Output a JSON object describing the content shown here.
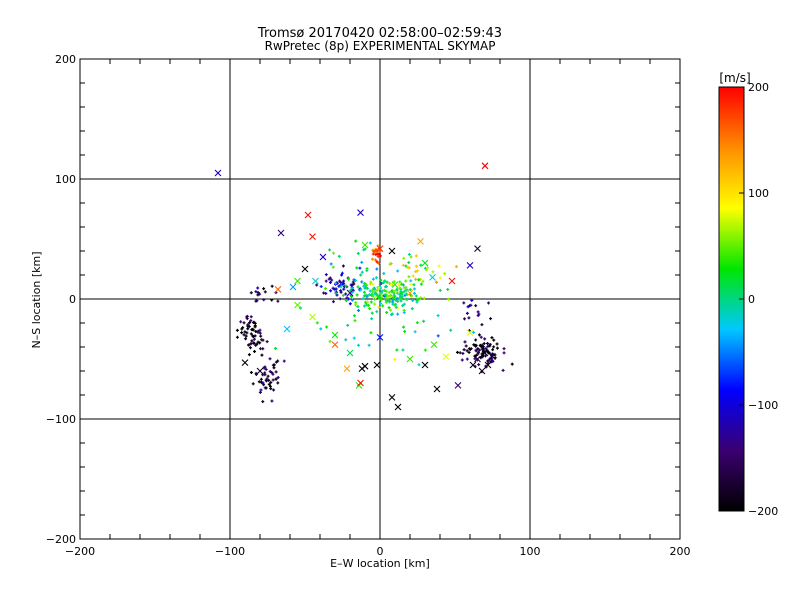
{
  "chart_data": {
    "type": "scatter",
    "title": "Tromsø 20170420 02:58:00–02:59:43",
    "subtitle": "RwPretec (8p) EXPERIMENTAL SKYMAP",
    "xlabel": "E–W location [km]",
    "ylabel": "N–S location [km]",
    "xlim": [
      -200,
      200
    ],
    "ylim": [
      -200,
      200
    ],
    "x_ticks": [
      -200,
      -100,
      0,
      100,
      200
    ],
    "y_ticks": [
      -200,
      -100,
      0,
      100,
      200
    ],
    "x_tick_labels": [
      "−200",
      "−100",
      "0",
      "100",
      "200"
    ],
    "y_tick_labels": [
      "−200",
      "−100",
      "0",
      "100",
      "200"
    ],
    "grid": true,
    "colorbar": {
      "label": "[m/s]",
      "range": [
        -200,
        200
      ],
      "ticks": [
        200,
        100,
        0,
        -100,
        -200
      ],
      "tick_labels": [
        "200",
        "100",
        "0",
        "−100",
        "−200"
      ],
      "colors": [
        "#000000",
        "#3a0070",
        "#0000ff",
        "#00c8ff",
        "#00e600",
        "#ffff00",
        "#ff8c00",
        "#ff0000"
      ]
    },
    "series": [
      {
        "marker": "x",
        "points": [
          [
            -108,
            105,
            -110
          ],
          [
            70,
            111,
            200
          ],
          [
            -48,
            70,
            195
          ],
          [
            -13,
            72,
            -110
          ],
          [
            -66,
            55,
            -140
          ],
          [
            -45,
            52,
            195
          ],
          [
            -38,
            35,
            -110
          ],
          [
            27,
            48,
            130
          ],
          [
            -10,
            45,
            40
          ],
          [
            0,
            42,
            180
          ],
          [
            8,
            40,
            -200
          ],
          [
            30,
            30,
            20
          ],
          [
            -50,
            25,
            -200
          ],
          [
            -43,
            15,
            -20
          ],
          [
            -55,
            15,
            40
          ],
          [
            -68,
            8,
            160
          ],
          [
            -58,
            10,
            -40
          ],
          [
            -20,
            5,
            -130
          ],
          [
            10,
            12,
            40
          ],
          [
            20,
            5,
            130
          ],
          [
            35,
            18,
            -20
          ],
          [
            60,
            28,
            -110
          ],
          [
            65,
            42,
            -180
          ],
          [
            48,
            15,
            195
          ],
          [
            -30,
            -30,
            30
          ],
          [
            -62,
            -25,
            -30
          ],
          [
            -55,
            -5,
            50
          ],
          [
            -45,
            -15,
            70
          ],
          [
            0,
            -32,
            -80
          ],
          [
            -30,
            -38,
            160
          ],
          [
            -20,
            -45,
            10
          ],
          [
            -12,
            -58,
            -200
          ],
          [
            -10,
            -56,
            -200
          ],
          [
            -2,
            -55,
            -200
          ],
          [
            30,
            -55,
            -200
          ],
          [
            38,
            -75,
            -200
          ],
          [
            8,
            -82,
            -200
          ],
          [
            12,
            -90,
            -200
          ],
          [
            -14,
            -72,
            40
          ],
          [
            -13,
            -70,
            195
          ],
          [
            -90,
            -53,
            -200
          ],
          [
            -22,
            -58,
            130
          ],
          [
            -80,
            -60,
            -190
          ],
          [
            20,
            -50,
            40
          ],
          [
            36,
            -38,
            40
          ],
          [
            70,
            -45,
            -190
          ],
          [
            65,
            -50,
            -170
          ],
          [
            72,
            -55,
            -180
          ],
          [
            75,
            -48,
            -190
          ],
          [
            62,
            -55,
            -190
          ],
          [
            68,
            -60,
            -180
          ],
          [
            52,
            -72,
            -150
          ],
          [
            60,
            -28,
            80
          ],
          [
            44,
            -48,
            80
          ]
        ]
      },
      {
        "marker": "dot",
        "clusters": [
          [
            -25,
            8,
            12,
            14,
            60,
            -110
          ],
          [
            5,
            3,
            25,
            12,
            180,
            20
          ],
          [
            -2,
            40,
            4,
            8,
            25,
            170
          ],
          [
            -85,
            -30,
            9,
            18,
            60,
            -190
          ],
          [
            -75,
            -65,
            10,
            18,
            50,
            -180
          ],
          [
            68,
            -45,
            14,
            14,
            90,
            -180
          ],
          [
            -10,
            20,
            22,
            22,
            40,
            0
          ],
          [
            25,
            25,
            18,
            16,
            30,
            80
          ],
          [
            0,
            -20,
            50,
            50,
            40,
            0
          ],
          [
            -80,
            5,
            12,
            8,
            15,
            -160
          ],
          [
            60,
            -10,
            15,
            12,
            15,
            -150
          ]
        ]
      }
    ]
  }
}
